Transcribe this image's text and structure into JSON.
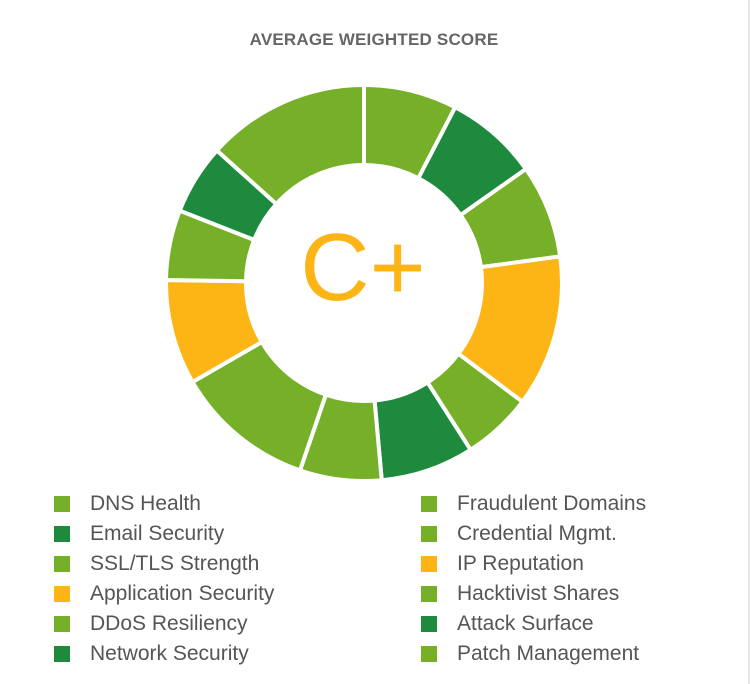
{
  "colors": {
    "light_green": "#76b029",
    "dark_green": "#1e8a3e",
    "orange": "#fdb515"
  },
  "title": "AVERAGE WEIGHTED SCORE",
  "grade": "C+",
  "chart_data": {
    "type": "pie",
    "title": "AVERAGE WEIGHTED SCORE",
    "center_label": "C+",
    "segments": [
      {
        "value": 8,
        "color": "#76b029"
      },
      {
        "value": 8,
        "color": "#1e8a3e"
      },
      {
        "value": 8,
        "color": "#76b029"
      },
      {
        "value": 13,
        "color": "#fdb515"
      },
      {
        "value": 6,
        "color": "#76b029"
      },
      {
        "value": 8,
        "color": "#1e8a3e"
      },
      {
        "value": 7,
        "color": "#76b029"
      },
      {
        "value": 12,
        "color": "#76b029"
      },
      {
        "value": 9,
        "color": "#fdb515"
      },
      {
        "value": 6,
        "color": "#76b029"
      },
      {
        "value": 6,
        "color": "#1e8a3e"
      },
      {
        "value": 14,
        "color": "#76b029"
      }
    ],
    "legend": [
      {
        "label": "DNS Health",
        "color": "#76b029"
      },
      {
        "label": "Email Security",
        "color": "#1e8a3e"
      },
      {
        "label": "SSL/TLS Strength",
        "color": "#76b029"
      },
      {
        "label": "Application Security",
        "color": "#fdb515"
      },
      {
        "label": "DDoS Resiliency",
        "color": "#76b029"
      },
      {
        "label": "Network Security",
        "color": "#1e8a3e"
      },
      {
        "label": "Fraudulent Domains",
        "color": "#76b029"
      },
      {
        "label": "Credential Mgmt.",
        "color": "#76b029"
      },
      {
        "label": "IP Reputation",
        "color": "#fdb515"
      },
      {
        "label": "Hacktivist Shares",
        "color": "#76b029"
      },
      {
        "label": "Attack Surface",
        "color": "#1e8a3e"
      },
      {
        "label": "Patch Management",
        "color": "#76b029"
      }
    ],
    "legend_placement": "bottom"
  }
}
